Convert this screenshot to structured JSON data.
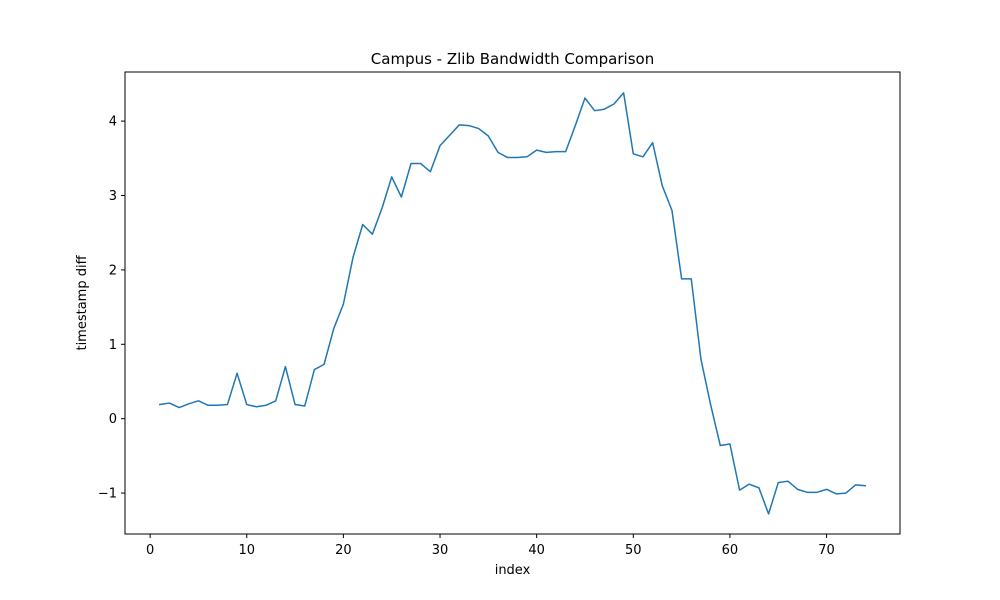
{
  "chart_data": {
    "type": "line",
    "title": "Campus - Zlib Bandwidth Comparison",
    "xlabel": "index",
    "ylabel": "timestamp diff",
    "xlim": [
      -2.6,
      77.6
    ],
    "ylim": [
      -1.55,
      4.66
    ],
    "xticks": [
      0,
      10,
      20,
      30,
      40,
      50,
      60,
      70
    ],
    "yticks": [
      -1,
      0,
      1,
      2,
      3,
      4
    ],
    "ytick_labels": [
      "−1",
      "0",
      "1",
      "2",
      "3",
      "4"
    ],
    "grid": false,
    "series": [
      {
        "color": "#1f77b4",
        "x": [
          1,
          2,
          3,
          4,
          5,
          6,
          7,
          8,
          9,
          10,
          11,
          12,
          13,
          14,
          15,
          16,
          17,
          18,
          19,
          20,
          21,
          22,
          23,
          24,
          25,
          26,
          27,
          28,
          29,
          30,
          31,
          32,
          33,
          34,
          35,
          36,
          37,
          38,
          39,
          40,
          41,
          42,
          43,
          44,
          45,
          46,
          47,
          48,
          49,
          50,
          51,
          52,
          53,
          54,
          55,
          56,
          57,
          58,
          59,
          60,
          61,
          62,
          63,
          64,
          65,
          66,
          67,
          68,
          69,
          70,
          71,
          72,
          73,
          74
        ],
        "y": [
          0.19,
          0.21,
          0.15,
          0.2,
          0.24,
          0.18,
          0.18,
          0.19,
          0.61,
          0.19,
          0.16,
          0.18,
          0.24,
          0.7,
          0.19,
          0.17,
          0.66,
          0.73,
          1.21,
          1.54,
          2.17,
          2.61,
          2.48,
          2.83,
          3.25,
          2.98,
          3.43,
          3.43,
          3.32,
          3.67,
          3.81,
          3.95,
          3.94,
          3.9,
          3.8,
          3.58,
          3.51,
          3.51,
          3.52,
          3.61,
          3.58,
          3.59,
          3.59,
          3.94,
          4.31,
          4.14,
          4.16,
          4.23,
          4.38,
          3.56,
          3.52,
          3.71,
          3.13,
          2.8,
          1.88,
          1.88,
          0.8,
          0.19,
          -0.36,
          -0.34,
          -0.96,
          -0.88,
          -0.93,
          -1.28,
          -0.86,
          -0.84,
          -0.95,
          -0.99,
          -0.99,
          -0.95,
          -1.01,
          -1.0,
          -0.89,
          -0.9
        ]
      }
    ]
  }
}
